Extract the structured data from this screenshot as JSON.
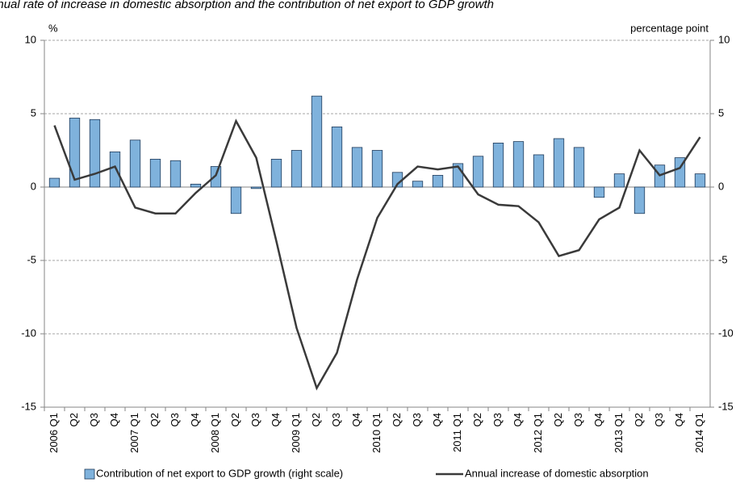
{
  "chart_data": {
    "type": "bar_line",
    "title": "Annual rate of increase in domestic absorption and the contribution of net export to GDP growth",
    "y_label": "%",
    "y2_label": "percentage point",
    "categories": [
      "2006 Q1",
      "Q2",
      "Q3",
      "Q4",
      "2007 Q1",
      "Q2",
      "Q3",
      "Q4",
      "2008 Q1",
      "Q2",
      "Q3",
      "Q4",
      "2009 Q1",
      "Q2",
      "Q3",
      "Q4",
      "2010 Q1",
      "Q2",
      "Q3",
      "Q4",
      "2011 Q1",
      "Q2",
      "Q3",
      "Q4",
      "2012 Q1",
      "Q2",
      "Q3",
      "Q4",
      "2013 Q1",
      "Q2",
      "Q3",
      "Q4",
      "2014 Q1"
    ],
    "series": [
      {
        "name": "Contribution of net export to GDP growth (right scale)",
        "type": "bar",
        "axis": "y2",
        "color": "#7fb2dc",
        "values": [
          0.6,
          4.7,
          4.6,
          2.4,
          3.2,
          1.9,
          1.8,
          0.2,
          1.4,
          -1.8,
          -0.1,
          1.9,
          2.5,
          6.2,
          4.1,
          2.7,
          2.5,
          1.0,
          0.4,
          0.8,
          1.6,
          2.1,
          3.0,
          3.1,
          2.2,
          3.3,
          2.7,
          -0.7,
          0.9,
          -1.8,
          1.5,
          2.0,
          0.9
        ]
      },
      {
        "name": "Annual increase of domestic absorption",
        "type": "line",
        "color": "#3a3a3a",
        "values": [
          4.2,
          0.5,
          0.9,
          1.4,
          -1.4,
          -1.8,
          -1.8,
          -0.4,
          0.8,
          4.5,
          2.0,
          -3.7,
          -9.6,
          -13.7,
          -11.3,
          -6.3,
          -2.1,
          0.2,
          1.4,
          1.2,
          1.4,
          -0.5,
          -1.2,
          -1.3,
          -2.4,
          -4.7,
          -4.3,
          -2.2,
          -1.4,
          2.5,
          0.8,
          1.3,
          3.4
        ]
      }
    ],
    "ylim": [
      -15,
      10
    ],
    "yticks": [
      -15,
      -10,
      -5,
      0,
      5,
      10
    ],
    "y2lim": [
      -15,
      10
    ],
    "y2ticks": [
      -15,
      -10,
      -5,
      0,
      5,
      10
    ],
    "grid": true
  }
}
